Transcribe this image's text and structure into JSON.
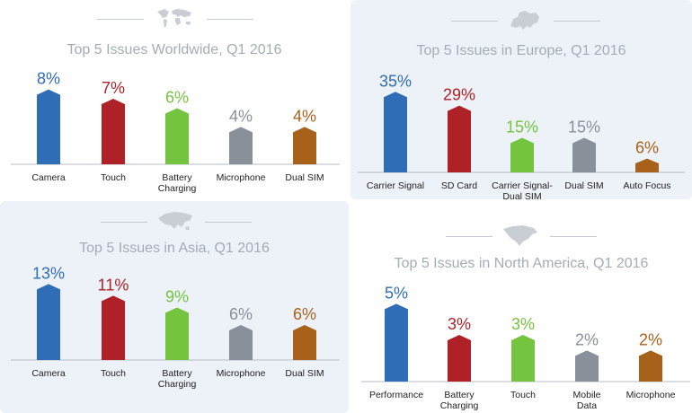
{
  "colors": {
    "blue": "#2f6db7",
    "red": "#ae2227",
    "green": "#74c43f",
    "gray": "#8a9099",
    "orange": "#a8611a",
    "title_gray": "#a4acb6",
    "axis": "#b7bcc3",
    "label": "#222222"
  },
  "icons": [
    "world-map-icon",
    "europe-map-icon",
    "asia-map-icon",
    "north-america-map-icon"
  ],
  "chart_data": [
    {
      "type": "bar",
      "title": "Top 5 Issues Worldwide, Q1 2016",
      "categories": [
        "Camera",
        "Touch",
        "Battery\nCharging",
        "Microphone",
        "Dual SIM"
      ],
      "values": [
        8,
        7,
        6,
        4,
        4
      ],
      "value_labels": [
        "8%",
        "7%",
        "6%",
        "4%",
        "4%"
      ],
      "colors": [
        "blue",
        "red",
        "green",
        "gray",
        "orange"
      ],
      "ylim": [
        0,
        9.5
      ],
      "grid": false,
      "legend": "none"
    },
    {
      "type": "bar",
      "title": "Top 5 Issues in Europe, Q1 2016",
      "categories": [
        "Carrier Signal",
        "SD Card",
        "Carrier Signal-\nDual SIM",
        "Dual SIM",
        "Auto Focus"
      ],
      "values": [
        35,
        29,
        15,
        15,
        6
      ],
      "value_labels": [
        "35%",
        "29%",
        "15%",
        "15%",
        "6%"
      ],
      "colors": [
        "blue",
        "red",
        "green",
        "gray",
        "orange"
      ],
      "ylim": [
        0,
        39
      ],
      "grid": false,
      "legend": "none"
    },
    {
      "type": "bar",
      "title": "Top 5 Issues in Asia, Q1 2016",
      "categories": [
        "Camera",
        "Touch",
        "Battery\nCharging",
        "Microphone",
        "Dual SIM"
      ],
      "values": [
        13,
        11,
        9,
        6,
        6
      ],
      "value_labels": [
        "13%",
        "11%",
        "9%",
        "6%",
        "6%"
      ],
      "colors": [
        "blue",
        "red",
        "green",
        "gray",
        "orange"
      ],
      "ylim": [
        0,
        14.6
      ],
      "grid": false,
      "legend": "none"
    },
    {
      "type": "bar",
      "title": "Top 5 Issues in North America, Q1 2016",
      "categories": [
        "Performance",
        "Battery\nCharging",
        "Touch",
        "Mobile\nData",
        "Microphone"
      ],
      "values": [
        5,
        3,
        3,
        2,
        2
      ],
      "value_labels": [
        "5%",
        "3%",
        "3%",
        "2%",
        "2%"
      ],
      "colors": [
        "blue",
        "red",
        "green",
        "gray",
        "orange"
      ],
      "ylim": [
        0,
        5.6
      ],
      "grid": false,
      "legend": "none"
    }
  ]
}
